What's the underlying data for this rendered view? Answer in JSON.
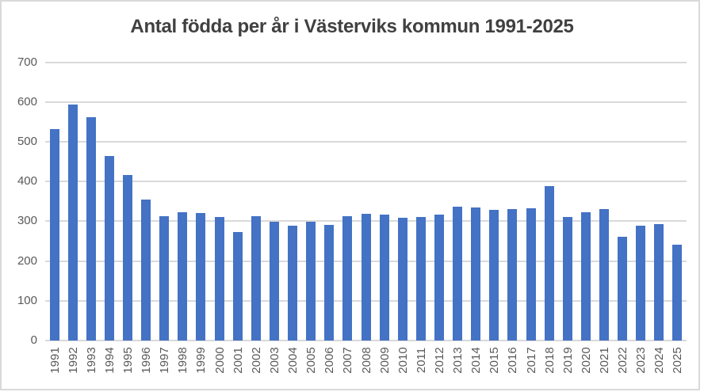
{
  "chart_data": {
    "type": "bar",
    "title": "Antal födda per år i Västerviks kommun 1991-2025",
    "categories": [
      "1991",
      "1992",
      "1993",
      "1994",
      "1995",
      "1996",
      "1997",
      "1998",
      "1999",
      "2000",
      "2001",
      "2002",
      "2003",
      "2004",
      "2005",
      "2006",
      "2007",
      "2008",
      "2009",
      "2010",
      "2011",
      "2012",
      "2013",
      "2014",
      "2015",
      "2016",
      "2017",
      "2018",
      "2019",
      "2020",
      "2021",
      "2022",
      "2023",
      "2024",
      "2025"
    ],
    "values": [
      532,
      593,
      561,
      464,
      416,
      355,
      313,
      323,
      320,
      311,
      273,
      312,
      298,
      289,
      298,
      291,
      313,
      318,
      317,
      309,
      311,
      316,
      336,
      335,
      328,
      331,
      333,
      388,
      310,
      323,
      331,
      261,
      288,
      293,
      241
    ],
    "xlabel": "",
    "ylabel": "",
    "ylim": [
      0,
      700
    ],
    "yticks": [
      0,
      100,
      200,
      300,
      400,
      500,
      600,
      700
    ],
    "grid": true,
    "legend": false,
    "x_tick_rotation": -90,
    "colors": {
      "bar": "#4472C4",
      "gridline": "#D9D9D9",
      "axis_line": "#D9D9D9",
      "border": "#D9D9D9",
      "title_text": "#404040",
      "tick_text": "#595959",
      "background": "#FFFFFF"
    }
  }
}
